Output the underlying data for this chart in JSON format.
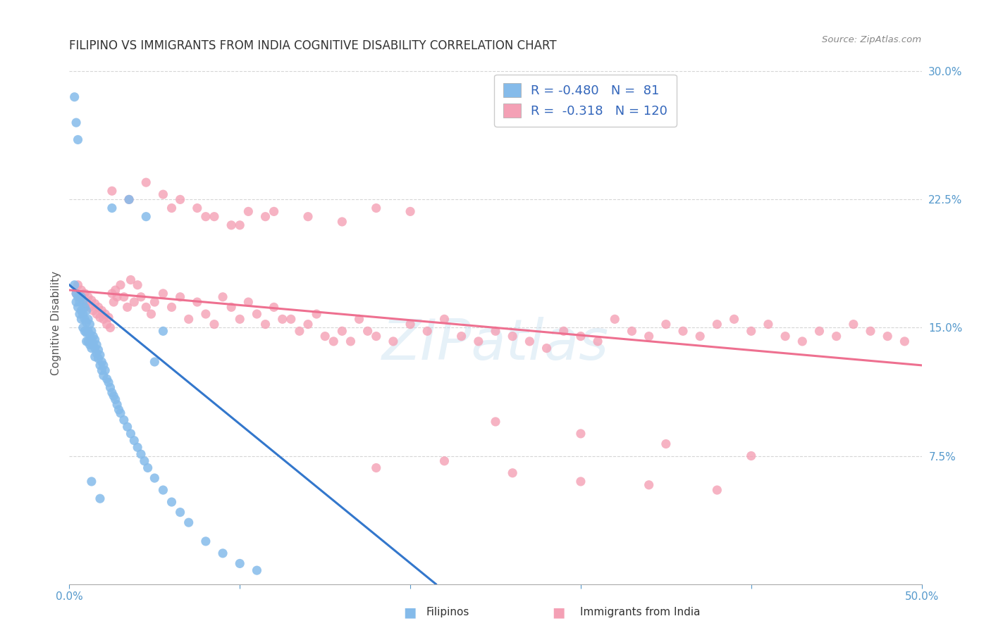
{
  "title": "FILIPINO VS IMMIGRANTS FROM INDIA COGNITIVE DISABILITY CORRELATION CHART",
  "source": "Source: ZipAtlas.com",
  "ylabel": "Cognitive Disability",
  "xlim": [
    0.0,
    0.5
  ],
  "ylim": [
    0.0,
    0.305
  ],
  "watermark": "ZIPatlas",
  "filipino_R": -0.48,
  "filipino_N": 81,
  "india_R": -0.318,
  "india_N": 120,
  "filipino_color": "#85BBEA",
  "india_color": "#F4A0B5",
  "filipino_line_color": "#3377CC",
  "india_line_color": "#EE7090",
  "background_color": "#FFFFFF",
  "grid_color": "#CCCCCC",
  "filipino_line_x0": 0.0,
  "filipino_line_y0": 0.175,
  "filipino_line_x1": 0.215,
  "filipino_line_y1": 0.0,
  "india_line_x0": 0.0,
  "india_line_y0": 0.172,
  "india_line_x1": 0.5,
  "india_line_y1": 0.128,
  "filipino_x": [
    0.003,
    0.004,
    0.004,
    0.005,
    0.005,
    0.006,
    0.006,
    0.007,
    0.007,
    0.007,
    0.008,
    0.008,
    0.008,
    0.009,
    0.009,
    0.009,
    0.01,
    0.01,
    0.01,
    0.01,
    0.011,
    0.011,
    0.011,
    0.012,
    0.012,
    0.012,
    0.013,
    0.013,
    0.013,
    0.014,
    0.014,
    0.015,
    0.015,
    0.015,
    0.016,
    0.016,
    0.017,
    0.017,
    0.018,
    0.018,
    0.019,
    0.019,
    0.02,
    0.02,
    0.021,
    0.022,
    0.023,
    0.024,
    0.025,
    0.026,
    0.027,
    0.028,
    0.029,
    0.03,
    0.032,
    0.034,
    0.036,
    0.038,
    0.04,
    0.042,
    0.044,
    0.046,
    0.05,
    0.055,
    0.06,
    0.065,
    0.07,
    0.08,
    0.09,
    0.1,
    0.11,
    0.025,
    0.035,
    0.045,
    0.055,
    0.003,
    0.004,
    0.005,
    0.013,
    0.018,
    0.05
  ],
  "filipino_y": [
    0.175,
    0.17,
    0.165,
    0.168,
    0.162,
    0.165,
    0.158,
    0.168,
    0.16,
    0.155,
    0.165,
    0.158,
    0.15,
    0.162,
    0.155,
    0.148,
    0.16,
    0.153,
    0.147,
    0.142,
    0.155,
    0.148,
    0.142,
    0.152,
    0.146,
    0.14,
    0.148,
    0.143,
    0.138,
    0.145,
    0.14,
    0.143,
    0.138,
    0.133,
    0.14,
    0.135,
    0.137,
    0.132,
    0.134,
    0.128,
    0.13,
    0.125,
    0.128,
    0.122,
    0.125,
    0.12,
    0.118,
    0.115,
    0.112,
    0.11,
    0.108,
    0.105,
    0.102,
    0.1,
    0.096,
    0.092,
    0.088,
    0.084,
    0.08,
    0.076,
    0.072,
    0.068,
    0.062,
    0.055,
    0.048,
    0.042,
    0.036,
    0.025,
    0.018,
    0.012,
    0.008,
    0.22,
    0.225,
    0.215,
    0.148,
    0.285,
    0.27,
    0.26,
    0.06,
    0.05,
    0.13
  ],
  "india_x": [
    0.004,
    0.005,
    0.006,
    0.007,
    0.008,
    0.009,
    0.01,
    0.011,
    0.012,
    0.013,
    0.014,
    0.015,
    0.016,
    0.017,
    0.018,
    0.019,
    0.02,
    0.021,
    0.022,
    0.023,
    0.024,
    0.025,
    0.026,
    0.027,
    0.028,
    0.03,
    0.032,
    0.034,
    0.036,
    0.038,
    0.04,
    0.042,
    0.045,
    0.048,
    0.05,
    0.055,
    0.06,
    0.065,
    0.07,
    0.075,
    0.08,
    0.085,
    0.09,
    0.095,
    0.1,
    0.105,
    0.11,
    0.115,
    0.12,
    0.125,
    0.13,
    0.135,
    0.14,
    0.145,
    0.15,
    0.155,
    0.16,
    0.165,
    0.17,
    0.175,
    0.18,
    0.19,
    0.2,
    0.21,
    0.22,
    0.23,
    0.24,
    0.25,
    0.26,
    0.27,
    0.28,
    0.29,
    0.3,
    0.31,
    0.32,
    0.33,
    0.34,
    0.35,
    0.36,
    0.37,
    0.38,
    0.39,
    0.4,
    0.41,
    0.42,
    0.43,
    0.44,
    0.45,
    0.46,
    0.47,
    0.48,
    0.49,
    0.06,
    0.08,
    0.1,
    0.12,
    0.14,
    0.16,
    0.18,
    0.2,
    0.025,
    0.035,
    0.045,
    0.055,
    0.065,
    0.075,
    0.085,
    0.095,
    0.105,
    0.115,
    0.25,
    0.3,
    0.35,
    0.4,
    0.18,
    0.22,
    0.26,
    0.3,
    0.34,
    0.38
  ],
  "india_y": [
    0.17,
    0.175,
    0.168,
    0.172,
    0.166,
    0.17,
    0.164,
    0.168,
    0.162,
    0.166,
    0.16,
    0.164,
    0.158,
    0.162,
    0.156,
    0.16,
    0.155,
    0.158,
    0.152,
    0.156,
    0.15,
    0.17,
    0.165,
    0.172,
    0.168,
    0.175,
    0.168,
    0.162,
    0.178,
    0.165,
    0.175,
    0.168,
    0.162,
    0.158,
    0.165,
    0.17,
    0.162,
    0.168,
    0.155,
    0.165,
    0.158,
    0.152,
    0.168,
    0.162,
    0.155,
    0.165,
    0.158,
    0.152,
    0.162,
    0.155,
    0.155,
    0.148,
    0.152,
    0.158,
    0.145,
    0.142,
    0.148,
    0.142,
    0.155,
    0.148,
    0.145,
    0.142,
    0.152,
    0.148,
    0.155,
    0.145,
    0.142,
    0.148,
    0.145,
    0.142,
    0.138,
    0.148,
    0.145,
    0.142,
    0.155,
    0.148,
    0.145,
    0.152,
    0.148,
    0.145,
    0.152,
    0.155,
    0.148,
    0.152,
    0.145,
    0.142,
    0.148,
    0.145,
    0.152,
    0.148,
    0.145,
    0.142,
    0.22,
    0.215,
    0.21,
    0.218,
    0.215,
    0.212,
    0.22,
    0.218,
    0.23,
    0.225,
    0.235,
    0.228,
    0.225,
    0.22,
    0.215,
    0.21,
    0.218,
    0.215,
    0.095,
    0.088,
    0.082,
    0.075,
    0.068,
    0.072,
    0.065,
    0.06,
    0.058,
    0.055
  ]
}
